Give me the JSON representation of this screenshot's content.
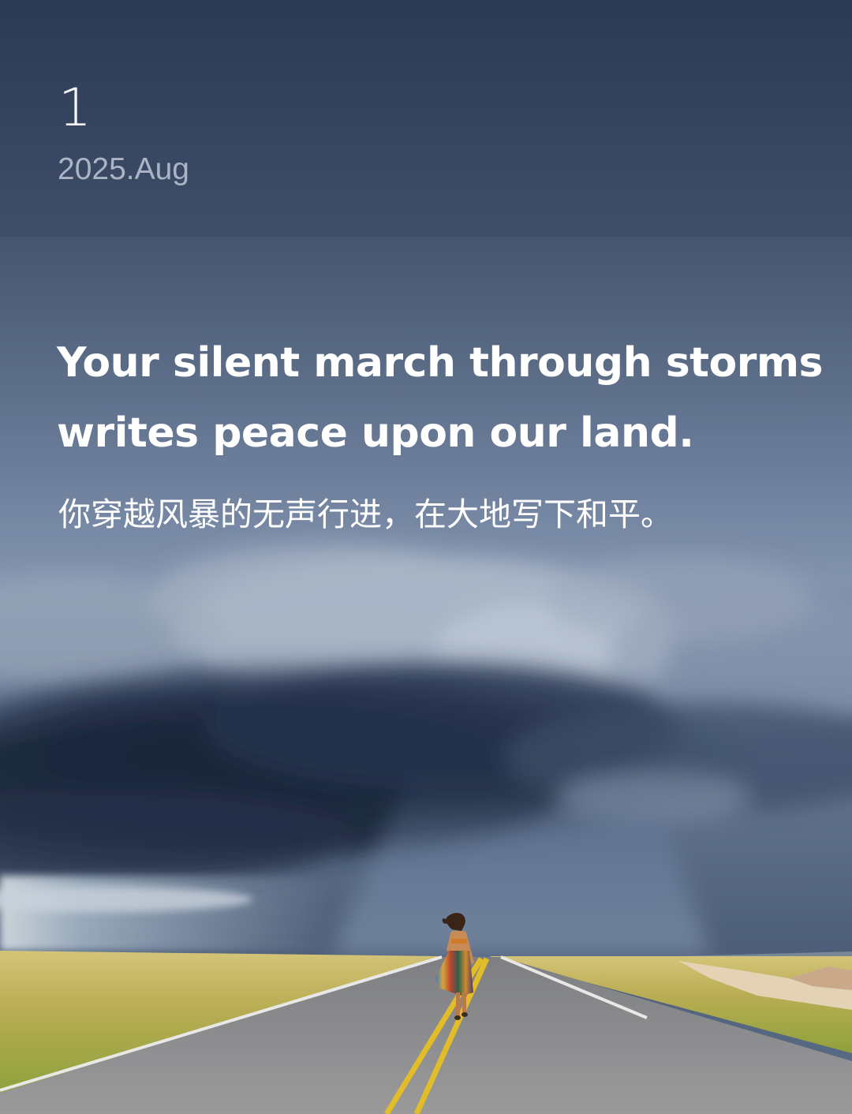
{
  "card": {
    "day": "1",
    "month": "2025.Aug",
    "quote_en_line1": "Your silent march through storms",
    "quote_en_line2": "writes peace upon our land.",
    "quote_zh": "你穿越风暴的无声行进，在大地写下和平。"
  },
  "colors": {
    "sky_top": "#2f3f58",
    "sky_mid": "#7f91ad",
    "storm_cloud": "#1c2638",
    "road": "#8d8d8e",
    "road_line": "#e6c12a",
    "grass": "#c9b560",
    "text_primary": "#ffffff",
    "text_secondary": "#aab4c5"
  },
  "photo": {
    "subject": "woman-walking-on-road-icon",
    "scene": "storm-cloud-over-prairie"
  }
}
